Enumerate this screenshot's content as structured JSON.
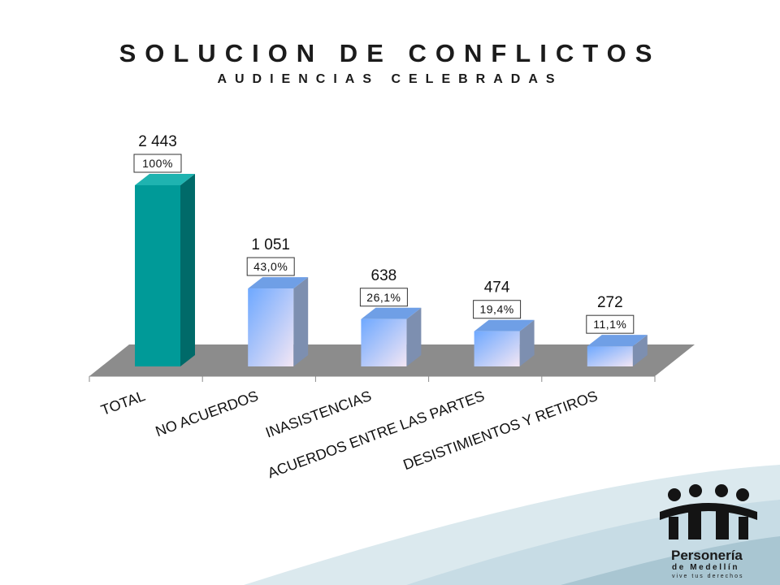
{
  "header": {
    "title": "SOLUCION DE CONFLICTOS",
    "subtitle": "AUDIENCIAS CELEBRADAS"
  },
  "chart_data": {
    "type": "bar",
    "style": "3d",
    "title": "SOLUCION DE CONFLICTOS",
    "subtitle": "AUDIENCIAS CELEBRADAS",
    "categories": [
      "TOTAL",
      "NO ACUERDOS",
      "INASISTENCIAS",
      "ACUERDOS ENTRE LAS PARTES",
      "DESISTIMIENTOS Y RETIROS"
    ],
    "values": [
      2443,
      1051,
      638,
      474,
      272
    ],
    "value_labels": [
      "2 443",
      "1 051",
      "638",
      "474",
      "272"
    ],
    "percent_labels": [
      "100%",
      "43,0%",
      "26,1%",
      "19,4%",
      "11,1%"
    ],
    "ylim": [
      0,
      2443
    ],
    "grid": false,
    "legend": "none",
    "colors": {
      "total_front": "#009a98",
      "total_side": "#006a69",
      "total_top": "#1fb3b0",
      "bar_gradient_top": "#6ea8ff",
      "bar_gradient_bottom": "#f3e6f4",
      "bar_side": "#7d8fb0",
      "bar_top": "#6f9fe6",
      "floor": "#8c8c8c"
    }
  },
  "logo": {
    "name": "Personería",
    "line2": "de Medellín",
    "tagline": "vive tus derechos"
  }
}
